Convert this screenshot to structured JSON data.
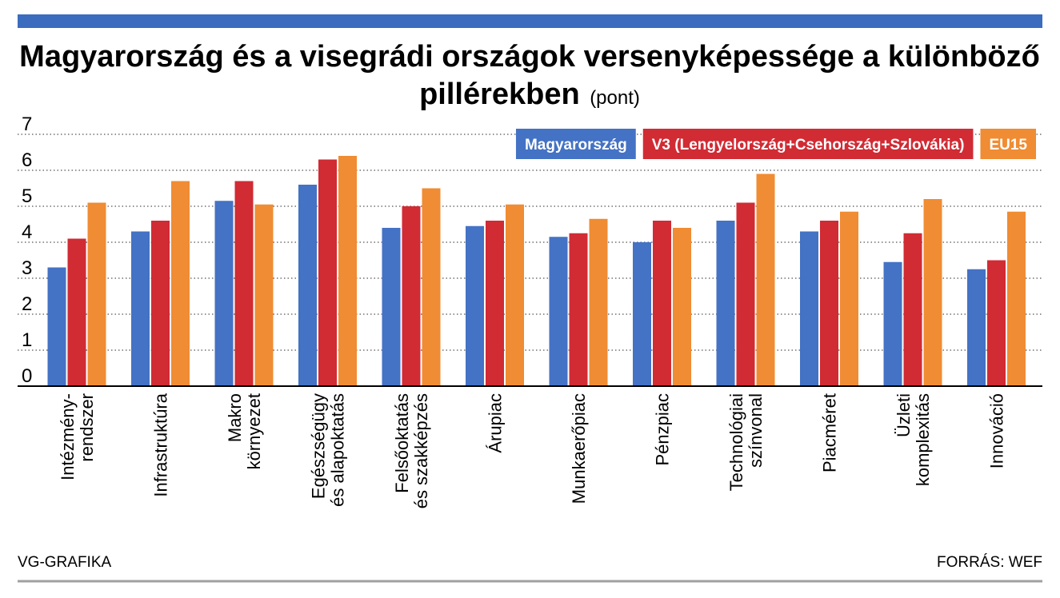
{
  "title": "Magyarország és a visegrádi országok versenyképessége a különböző pillérekben",
  "title_line1": "Magyarország és a visegrádi országok versenyképessége a különböző",
  "title_line2": "pillérekben",
  "unit": "(pont)",
  "footer": {
    "left": "VG-GRAFIKA",
    "right": "FORRÁS: WEF"
  },
  "colors": {
    "top_bar": "#3B6CBE",
    "bottom_rule": "#A0A0A0",
    "grid": "#555555",
    "axis": "#000000"
  },
  "chart_data": {
    "type": "bar",
    "ylim": [
      0,
      7
    ],
    "yticks": [
      0,
      1,
      2,
      3,
      4,
      5,
      6,
      7
    ],
    "grid": true,
    "legend_position": "top-right",
    "categories": [
      [
        "Intézmény-",
        "rendszer"
      ],
      [
        "Infrastruktúra"
      ],
      [
        "Makro",
        "környezet"
      ],
      [
        "Egészségügy",
        "és alapoktatás"
      ],
      [
        "Felsőoktatás",
        "és szakképzés"
      ],
      [
        "Árupiac"
      ],
      [
        "Munkaerőpiac"
      ],
      [
        "Pénzpiac"
      ],
      [
        "Technológiai",
        "színvonal"
      ],
      [
        "Piacméret"
      ],
      [
        "Üzleti",
        "komplexitás"
      ],
      [
        "Innováció"
      ]
    ],
    "series": [
      {
        "name": "Magyarország",
        "color": "#4472C4",
        "values": [
          3.3,
          4.3,
          5.15,
          5.6,
          4.4,
          4.45,
          4.15,
          4.0,
          4.6,
          4.3,
          3.45,
          3.25
        ]
      },
      {
        "name": "V3 (Lengyelország+Csehország+Szlovákia)",
        "color": "#D12B34",
        "values": [
          4.1,
          4.6,
          5.7,
          6.3,
          5.0,
          4.6,
          4.25,
          4.6,
          5.1,
          4.6,
          4.25,
          3.5
        ]
      },
      {
        "name": "EU15",
        "color": "#F08C33",
        "values": [
          5.1,
          5.7,
          5.05,
          6.4,
          5.5,
          5.05,
          4.65,
          4.4,
          5.9,
          4.85,
          5.2,
          4.85
        ]
      }
    ]
  }
}
